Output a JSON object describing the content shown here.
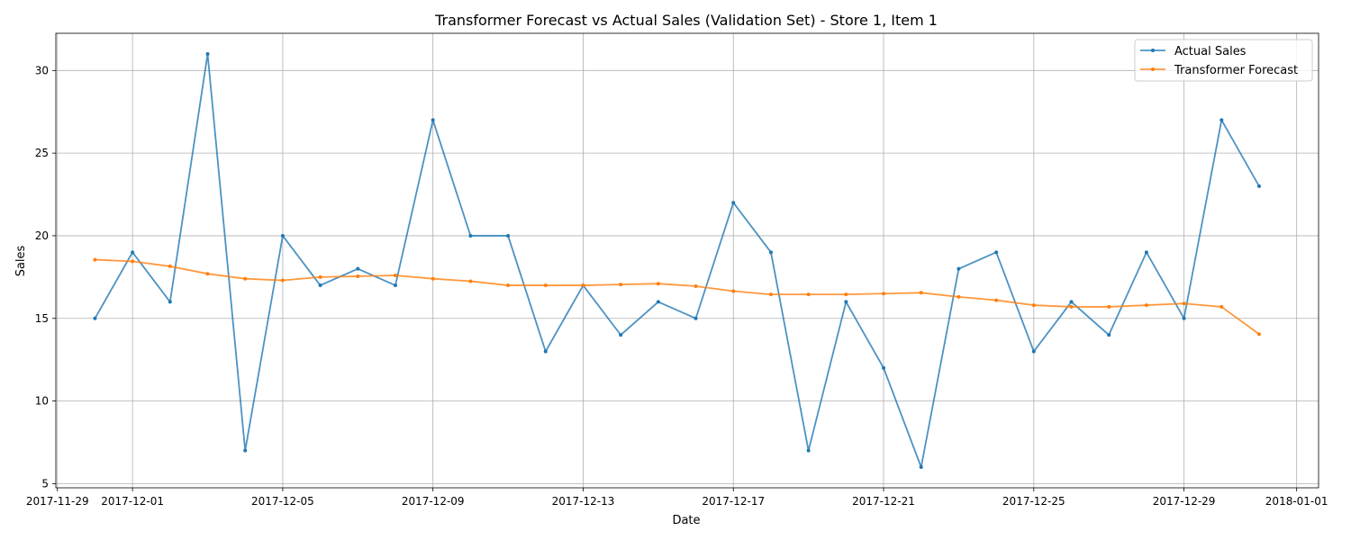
{
  "chart_data": {
    "type": "line",
    "title": "Transformer Forecast vs Actual Sales (Validation Set) - Store 1, Item 1",
    "xlabel": "Date",
    "ylabel": "Sales",
    "x_range": [
      "2017-11-28T23:00",
      "2018-01-01T14:00"
    ],
    "ylim": [
      4.75,
      32.25
    ],
    "x_ticks": [
      "2017-11-29",
      "2017-12-01",
      "2017-12-05",
      "2017-12-09",
      "2017-12-13",
      "2017-12-17",
      "2017-12-21",
      "2017-12-25",
      "2017-12-29",
      "2018-01-01"
    ],
    "x_tick_labels": [
      "2017-11-29",
      "2017-12-01",
      "2017-12-05",
      "2017-12-09",
      "2017-12-13",
      "2017-12-17",
      "2017-12-21",
      "2017-12-25",
      "2017-12-29",
      "2018-01-01"
    ],
    "y_ticks": [
      5,
      10,
      15,
      20,
      25,
      30
    ],
    "y_tick_labels": [
      "5",
      "10",
      "15",
      "20",
      "25",
      "30"
    ],
    "grid": true,
    "legend_position": "top-right",
    "x": [
      "2017-11-30",
      "2017-12-01",
      "2017-12-02",
      "2017-12-03",
      "2017-12-04",
      "2017-12-05",
      "2017-12-06",
      "2017-12-07",
      "2017-12-08",
      "2017-12-09",
      "2017-12-10",
      "2017-12-11",
      "2017-12-12",
      "2017-12-13",
      "2017-12-14",
      "2017-12-15",
      "2017-12-16",
      "2017-12-17",
      "2017-12-18",
      "2017-12-19",
      "2017-12-20",
      "2017-12-21",
      "2017-12-22",
      "2017-12-23",
      "2017-12-24",
      "2017-12-25",
      "2017-12-26",
      "2017-12-27",
      "2017-12-28",
      "2017-12-29",
      "2017-12-30",
      "2017-12-31"
    ],
    "series": [
      {
        "name": "Actual Sales",
        "color": "#1f77b4",
        "values": [
          15,
          19,
          16,
          31,
          7,
          20,
          17,
          18,
          17,
          27,
          20,
          20,
          13,
          17,
          14,
          16,
          15,
          22,
          19,
          7,
          16,
          12,
          6,
          18,
          19,
          13,
          16,
          14,
          19,
          15,
          27,
          23
        ]
      },
      {
        "name": "Transformer Forecast",
        "color": "#ff7f0e",
        "values": [
          18.55,
          18.45,
          18.15,
          17.7,
          17.4,
          17.3,
          17.5,
          17.55,
          17.6,
          17.4,
          17.25,
          17.0,
          17.0,
          17.0,
          17.05,
          17.1,
          16.95,
          16.65,
          16.45,
          16.45,
          16.45,
          16.5,
          16.55,
          16.3,
          16.1,
          15.8,
          15.7,
          15.7,
          15.8,
          15.9,
          15.7,
          14.05
        ]
      }
    ]
  }
}
